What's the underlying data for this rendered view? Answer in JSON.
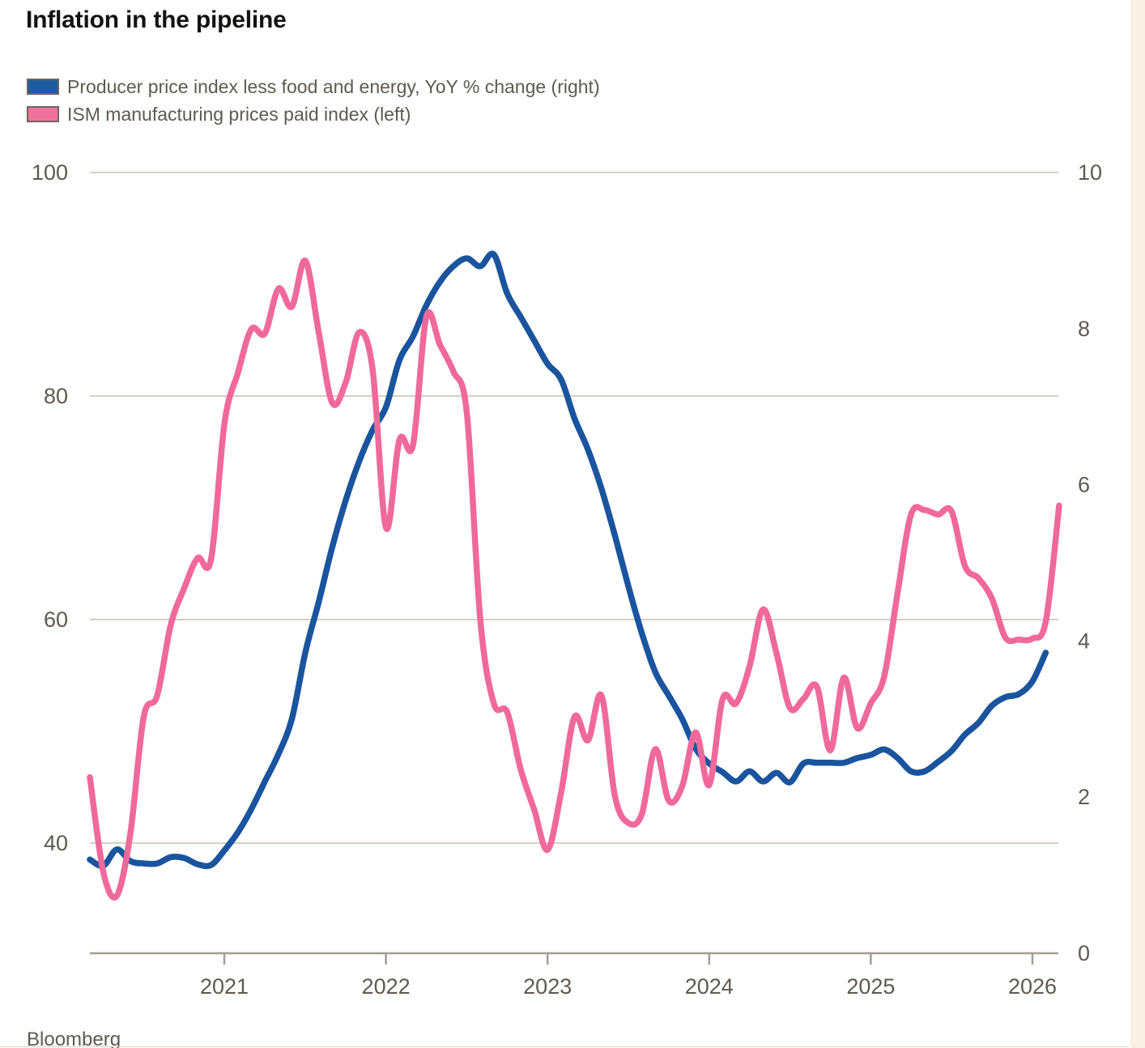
{
  "title": "Inflation in the pipeline",
  "source": "Bloomberg",
  "legend": [
    {
      "label": "Producer price index less food and energy, YoY % change (right)",
      "color": "#1f5c9e",
      "border": "#6b655f"
    },
    {
      "label": "ISM manufacturing prices paid index (left)",
      "color": "#f1729d",
      "border": "#6b655f"
    }
  ],
  "colors": {
    "background": "#ffffff",
    "paper_strip": "#fbf0e5",
    "gridline": "#d8cfc6",
    "axis_line": "#a49d96",
    "label_text": "#5f5954",
    "title_text": "#141111",
    "ppi_blue": "#1a549e",
    "ism_pink": "#f0699a"
  },
  "chart_data": {
    "type": "line",
    "frequency": "monthly",
    "start_month": "2020-02",
    "x_tick_labels": [
      "2021",
      "2022",
      "2023",
      "2024",
      "2025",
      "2026"
    ],
    "left_axis": {
      "tick_labels": [
        100,
        80,
        60,
        40
      ],
      "label_for_series": "ISM manufacturing prices paid index"
    },
    "right_axis": {
      "tick_labels": [
        10,
        8,
        6,
        4,
        2,
        0
      ],
      "label_for_series": "Producer price index less food and energy, YoY % change"
    },
    "grid": "horizontal-only",
    "legend_position": "top-left",
    "series": [
      {
        "name": "Producer price index less food and energy, YoY % change",
        "axis": "right",
        "color": "#1a549e",
        "end_month": "2026-01",
        "values": [
          1.2,
          1.12,
          1.33,
          1.18,
          1.15,
          1.15,
          1.23,
          1.22,
          1.14,
          1.13,
          1.32,
          1.55,
          1.85,
          2.2,
          2.55,
          3.0,
          3.85,
          4.5,
          5.2,
          5.8,
          6.3,
          6.7,
          7.0,
          7.6,
          7.9,
          8.3,
          8.6,
          8.8,
          8.9,
          8.8,
          8.95,
          8.45,
          8.15,
          7.85,
          7.55,
          7.35,
          6.85,
          6.45,
          5.95,
          5.35,
          4.7,
          4.1,
          3.6,
          3.3,
          3.0,
          2.62,
          2.43,
          2.32,
          2.2,
          2.33,
          2.2,
          2.31,
          2.19,
          2.43,
          2.44,
          2.44,
          2.44,
          2.5,
          2.54,
          2.61,
          2.5,
          2.33,
          2.33,
          2.45,
          2.59,
          2.8,
          2.95,
          3.17,
          3.28,
          3.32,
          3.48,
          3.85
        ]
      },
      {
        "name": "ISM manufacturing prices paid index",
        "axis": "left",
        "color": "#f0699a",
        "end_month": "2026-02",
        "values": [
          45.9,
          37.4,
          35.3,
          40.8,
          51.3,
          53.2,
          59.5,
          62.8,
          65.5,
          65.4,
          77.6,
          82.1,
          86.0,
          85.6,
          89.6,
          88.0,
          92.1,
          85.7,
          79.4,
          81.2,
          85.7,
          82.4,
          68.2,
          76.1,
          75.6,
          87.1,
          84.6,
          82.2,
          78.5,
          60.0,
          52.5,
          51.7,
          46.6,
          43.0,
          39.4,
          44.5,
          51.3,
          49.2,
          53.2,
          44.2,
          41.8,
          42.6,
          48.4,
          43.8,
          45.1,
          49.9,
          45.2,
          52.9,
          52.5,
          55.8,
          60.9,
          57.0,
          52.1,
          52.9,
          54.0,
          48.3,
          54.8,
          50.3,
          52.5,
          54.9,
          62.4,
          69.4,
          69.8,
          69.4,
          69.7,
          64.8,
          63.7,
          61.9,
          58.4,
          58.2,
          58.3,
          59.8,
          70.2
        ]
      }
    ]
  }
}
